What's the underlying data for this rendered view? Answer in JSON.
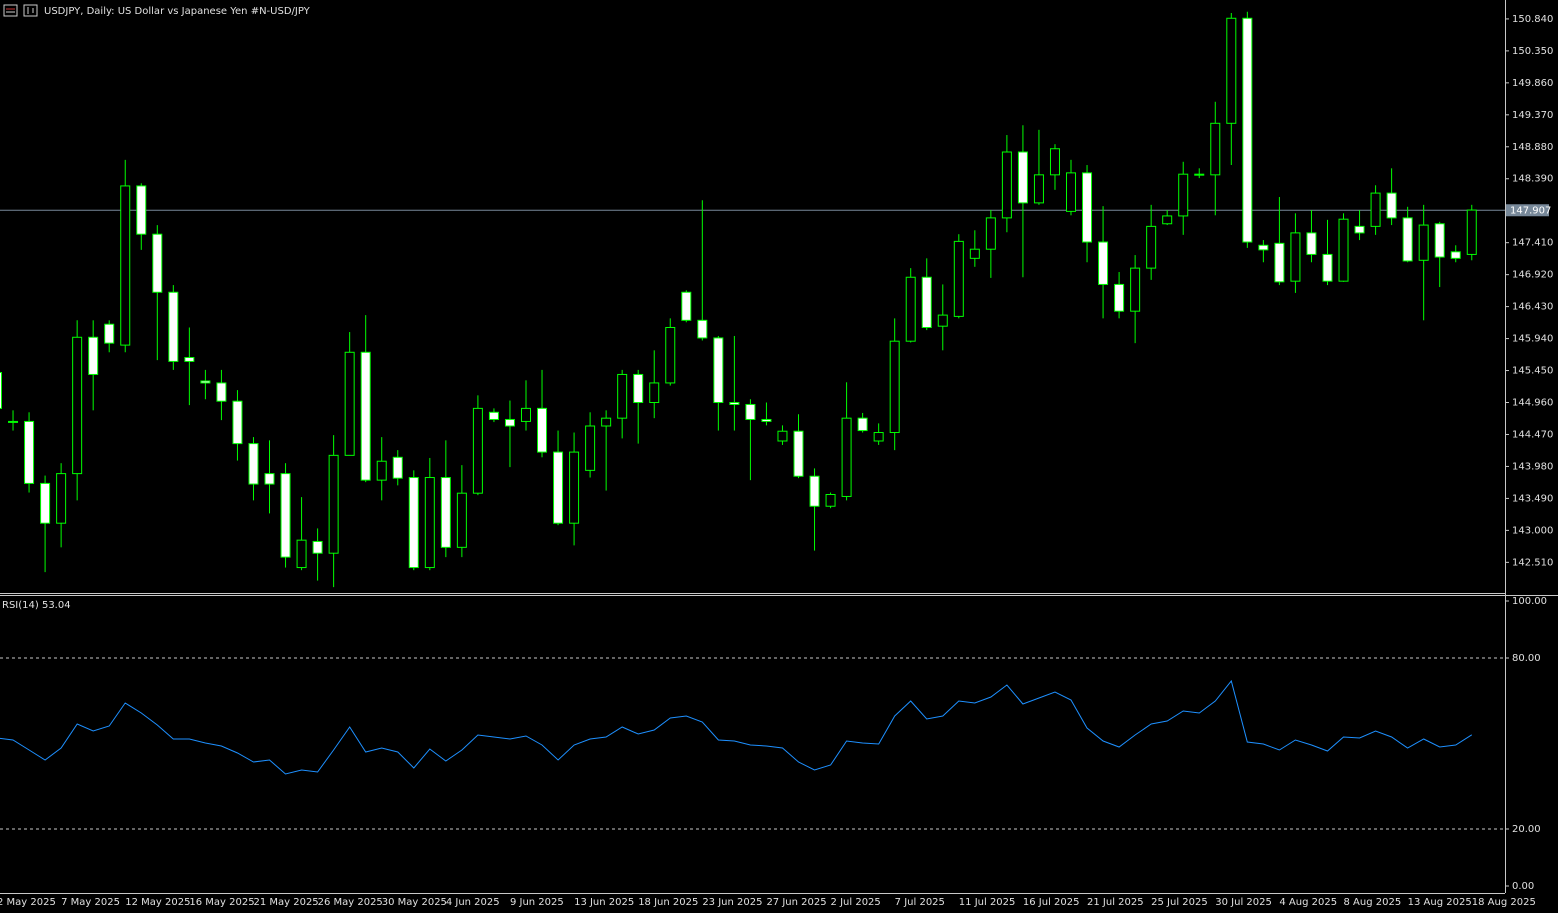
{
  "chart_data": [
    {
      "type": "candlestick",
      "title": "USDJPY, Daily:  US Dollar vs  Japanese Yen #N-USD/JPY",
      "categories": [
        "2 May 2025",
        null,
        null,
        null,
        "7 May 2025",
        null,
        null,
        null,
        "12 May 2025",
        null,
        null,
        null,
        "16 May 2025",
        null,
        null,
        null,
        "21 May 2025",
        null,
        null,
        null,
        "26 May 2025",
        null,
        null,
        null,
        "30 May 2025",
        null,
        null,
        null,
        "4 Jun 2025",
        null,
        null,
        null,
        "9 Jun 2025",
        null,
        null,
        null,
        "13 Jun 2025",
        null,
        null,
        null,
        "18 Jun 2025",
        null,
        null,
        null,
        "23 Jun 2025",
        null,
        null,
        null,
        "27 Jun 2025",
        null,
        null,
        null,
        "2 Jul 2025",
        null,
        null,
        null,
        "7 Jul 2025",
        null,
        null,
        null,
        "11 Jul 2025",
        null,
        null,
        null,
        "16 Jul 2025",
        null,
        null,
        null,
        "21 Jul 2025",
        null,
        null,
        null,
        "25 Jul 2025",
        null,
        null,
        null,
        "30 Jul 2025",
        null,
        null,
        null,
        "4 Aug 2025",
        null,
        null,
        null,
        "8 Aug 2025",
        null,
        null,
        null,
        "13 Aug 2025",
        null,
        null,
        null,
        "18 Aug 2025"
      ],
      "open": [
        145.42,
        144.67,
        144.67,
        143.72,
        143.11,
        143.87,
        145.96,
        146.16,
        145.84,
        148.28,
        147.54,
        146.65,
        145.65,
        145.29,
        145.26,
        144.98,
        144.33,
        143.87,
        143.87,
        142.43,
        142.83,
        142.65,
        144.15,
        145.73,
        143.77,
        144.12,
        143.81,
        142.43,
        143.81,
        142.74,
        143.57,
        144.81,
        144.7,
        144.67,
        144.87,
        144.2,
        143.11,
        143.92,
        144.6,
        144.72,
        145.39,
        144.96,
        145.26,
        146.65,
        146.22,
        145.95,
        144.96,
        144.93,
        144.7,
        144.37,
        144.52,
        143.83,
        143.37,
        143.52,
        144.72,
        144.37,
        144.5,
        145.9,
        146.88,
        146.13,
        146.28,
        147.17,
        147.31,
        147.79,
        148.8,
        148.02,
        148.45,
        147.89,
        148.48,
        147.42,
        146.77,
        146.36,
        147.02,
        147.7,
        147.82,
        148.45,
        148.45,
        149.24,
        150.85,
        147.37,
        147.4,
        146.82,
        147.56,
        147.23,
        146.82,
        147.66,
        147.66,
        148.17,
        147.79,
        147.14,
        147.7,
        147.27,
        147.23
      ],
      "high": [
        145.53,
        144.84,
        144.81,
        143.84,
        144.03,
        146.22,
        146.22,
        146.22,
        148.68,
        148.32,
        147.68,
        146.76,
        146.11,
        145.46,
        145.46,
        145.15,
        144.43,
        144.38,
        144.03,
        143.51,
        143.03,
        144.46,
        146.04,
        146.3,
        144.43,
        144.23,
        143.92,
        144.11,
        144.38,
        144.0,
        145.07,
        144.87,
        144.99,
        145.3,
        145.46,
        144.53,
        144.5,
        144.81,
        144.84,
        145.46,
        145.46,
        145.76,
        146.25,
        146.68,
        148.06,
        145.98,
        145.98,
        145.01,
        144.96,
        144.61,
        144.78,
        143.95,
        143.58,
        145.27,
        144.8,
        144.64,
        146.25,
        147.02,
        147.17,
        146.77,
        147.54,
        147.6,
        147.91,
        149.06,
        149.21,
        149.14,
        148.92,
        148.68,
        148.6,
        147.97,
        146.96,
        147.22,
        147.99,
        147.91,
        148.65,
        148.55,
        149.57,
        150.93,
        150.95,
        147.45,
        148.11,
        147.86,
        147.91,
        147.76,
        147.86,
        147.91,
        148.29,
        148.55,
        147.96,
        147.99,
        147.73,
        147.37,
        147.99
      ],
      "low": [
        144.84,
        144.53,
        143.58,
        142.36,
        142.74,
        143.46,
        144.84,
        145.73,
        145.73,
        147.3,
        145.61,
        145.46,
        144.92,
        145.01,
        144.69,
        144.07,
        143.46,
        143.26,
        142.43,
        142.39,
        142.23,
        142.13,
        144.15,
        143.74,
        143.46,
        143.69,
        142.39,
        142.39,
        142.59,
        142.59,
        143.54,
        144.66,
        143.97,
        144.53,
        144.12,
        143.08,
        142.77,
        143.81,
        143.61,
        144.41,
        144.33,
        144.72,
        145.22,
        146.19,
        145.91,
        144.53,
        144.53,
        143.77,
        144.61,
        144.31,
        143.8,
        142.69,
        143.34,
        143.46,
        144.5,
        144.31,
        144.23,
        145.88,
        146.07,
        145.76,
        146.25,
        147.04,
        146.87,
        147.57,
        146.88,
        147.99,
        148.22,
        147.83,
        147.11,
        146.25,
        146.25,
        145.87,
        146.84,
        147.68,
        147.53,
        148.4,
        147.83,
        148.6,
        147.33,
        147.11,
        146.76,
        146.64,
        147.11,
        146.76,
        146.81,
        147.45,
        147.53,
        147.68,
        147.11,
        146.22,
        146.73,
        147.11,
        147.14
      ],
      "close": [
        144.87,
        144.66,
        143.72,
        143.11,
        143.87,
        145.96,
        145.39,
        145.87,
        148.28,
        147.54,
        146.65,
        145.59,
        145.59,
        145.26,
        144.98,
        144.33,
        143.71,
        143.71,
        142.59,
        142.85,
        142.65,
        144.15,
        145.73,
        143.77,
        144.06,
        143.8,
        142.43,
        143.81,
        142.74,
        143.57,
        144.87,
        144.7,
        144.6,
        144.87,
        144.2,
        143.11,
        144.2,
        144.6,
        144.72,
        145.39,
        144.96,
        145.26,
        146.11,
        146.22,
        145.95,
        144.96,
        144.93,
        144.7,
        144.67,
        144.52,
        143.83,
        143.37,
        143.55,
        144.72,
        144.53,
        144.5,
        145.9,
        146.88,
        146.11,
        146.3,
        147.43,
        147.31,
        147.79,
        148.8,
        148.02,
        148.45,
        148.85,
        148.48,
        147.42,
        146.77,
        146.36,
        147.02,
        147.66,
        147.82,
        148.46,
        148.46,
        149.24,
        150.85,
        147.42,
        147.3,
        146.81,
        147.56,
        147.23,
        146.82,
        147.77,
        147.56,
        148.17,
        147.79,
        147.13,
        147.68,
        147.19,
        147.17,
        147.91
      ],
      "up_color": "#00ff00",
      "down_color": "#ffffff",
      "ylim": [
        142.04,
        151.13
      ],
      "yticks": [
        {
          "value": 150.84,
          "label": "150.840"
        },
        {
          "value": 150.35,
          "label": "150.350"
        },
        {
          "value": 149.86,
          "label": "149.860"
        },
        {
          "value": 149.37,
          "label": "149.370"
        },
        {
          "value": 148.88,
          "label": "148.880"
        },
        {
          "value": 148.39,
          "label": "148.390"
        },
        {
          "value": 147.41,
          "label": "147.410"
        },
        {
          "value": 146.92,
          "label": "146.920"
        },
        {
          "value": 146.43,
          "label": "146.430"
        },
        {
          "value": 145.94,
          "label": "145.940"
        },
        {
          "value": 145.45,
          "label": "145.450"
        },
        {
          "value": 144.96,
          "label": "144.960"
        },
        {
          "value": 144.47,
          "label": "144.470"
        },
        {
          "value": 143.98,
          "label": "143.980"
        },
        {
          "value": 143.49,
          "label": "143.490"
        },
        {
          "value": 143,
          "label": "143.000"
        },
        {
          "value": 142.51,
          "label": "142.510"
        }
      ],
      "current_price": 147.907,
      "price_line_color": "#778899"
    },
    {
      "type": "line",
      "title": "RSI(14) 53.04",
      "color": "#1e90ff",
      "values": [
        51.93,
        51.23,
        47.72,
        44.21,
        48.42,
        56.84,
        54.39,
        56.14,
        64.21,
        60.7,
        56.49,
        51.58,
        51.58,
        50.18,
        49.12,
        46.67,
        43.51,
        44.21,
        39.3,
        40.7,
        40.0,
        47.72,
        55.79,
        47.02,
        48.42,
        47.02,
        41.4,
        48.07,
        43.86,
        47.72,
        52.98,
        52.28,
        51.58,
        52.63,
        49.47,
        44.21,
        49.47,
        51.58,
        52.28,
        55.79,
        53.33,
        54.74,
        58.95,
        59.65,
        57.54,
        51.23,
        50.88,
        49.47,
        49.12,
        48.42,
        43.51,
        40.7,
        42.46,
        50.88,
        50.18,
        49.82,
        59.65,
        64.91,
        58.6,
        59.65,
        64.91,
        64.21,
        66.32,
        70.53,
        63.86,
        65.96,
        68.07,
        65.26,
        55.44,
        50.88,
        48.77,
        52.98,
        56.84,
        57.89,
        61.4,
        60.7,
        64.91,
        71.93,
        50.53,
        49.82,
        47.72,
        51.23,
        49.47,
        47.37,
        52.28,
        51.93,
        54.39,
        52.28,
        48.42,
        51.58,
        48.77,
        49.47,
        53.04
      ],
      "ylim": [
        -2.46,
        101.75
      ],
      "yticks": [
        {
          "value": 0,
          "label": "0.00"
        },
        {
          "value": 20,
          "label": "20.00"
        },
        {
          "value": 80,
          "label": "80.00"
        },
        {
          "value": 100,
          "label": "100.00"
        }
      ]
    }
  ]
}
